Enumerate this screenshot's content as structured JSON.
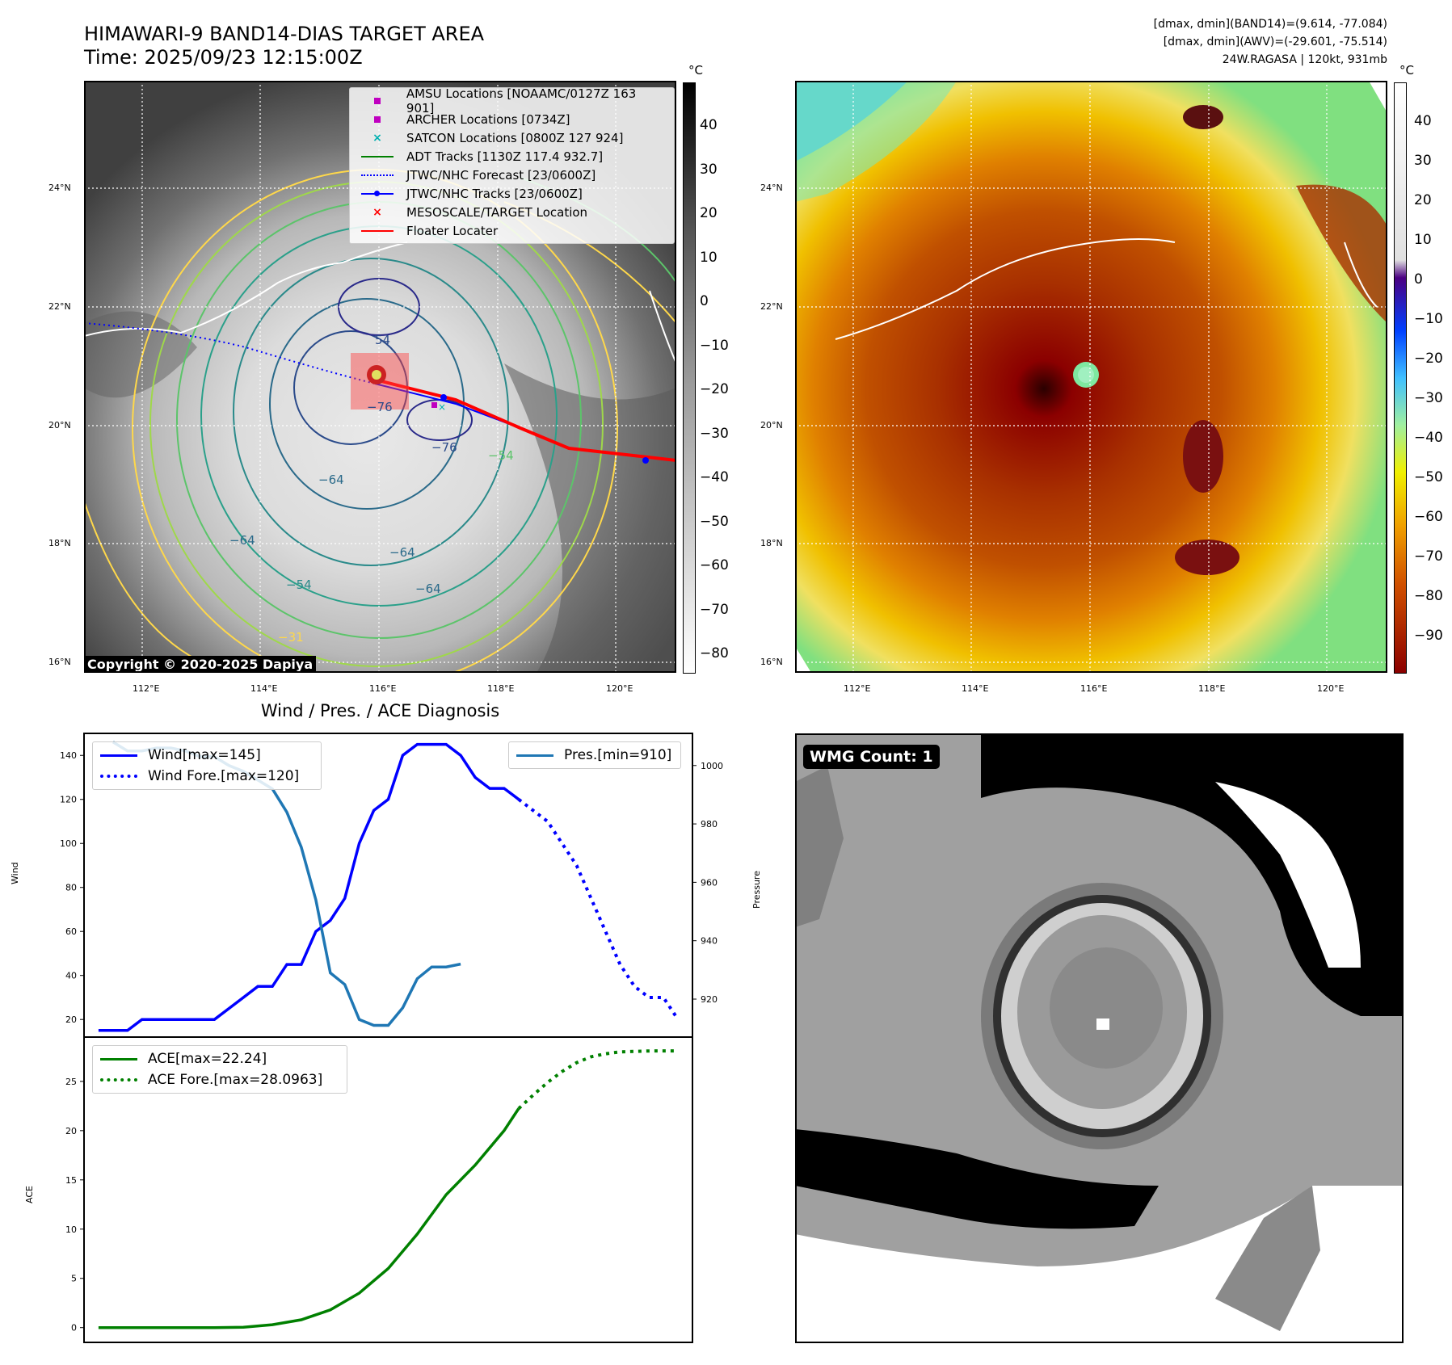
{
  "header": {
    "title": "HIMAWARI-9 BAND14-DIAS TARGET AREA",
    "time": "Time: 2025/09/23 12:15:00Z",
    "info1": "[dmax, dmin](BAND14)=(9.614, -77.084)",
    "info2": "[dmax, dmin](AWV)=(-29.601, -75.514)",
    "info3": "24W.RAGASA | 120kt, 931mb"
  },
  "map_ticks": {
    "lat": [
      "24°N",
      "22°N",
      "20°N",
      "18°N",
      "16°N"
    ],
    "lon": [
      "112°E",
      "114°E",
      "116°E",
      "118°E",
      "120°E"
    ]
  },
  "colorbar_left": {
    "unit": "°C",
    "labels": [
      "40",
      "30",
      "20",
      "10",
      "0",
      "−10",
      "−20",
      "−30",
      "−40",
      "−50",
      "−60",
      "−70",
      "−80"
    ]
  },
  "colorbar_right": {
    "unit": "°C",
    "labels": [
      "40",
      "30",
      "20",
      "10",
      "0",
      "−10",
      "−20",
      "−30",
      "−40",
      "−50",
      "−60",
      "−70",
      "−80",
      "−90"
    ]
  },
  "map_legend": [
    {
      "label": "AMSU Locations [NOAAMC/0127Z 163 901]",
      "marker": "square",
      "color": "#c000c0"
    },
    {
      "label": "ARCHER Locations [0734Z]",
      "marker": "square",
      "color": "#c000c0"
    },
    {
      "label": "SATCON Locations [0800Z 127 924]",
      "marker": "x",
      "color": "#00b0b0"
    },
    {
      "label": "ADT Tracks [1130Z 117.4 932.7]",
      "marker": "line",
      "color": "#008000"
    },
    {
      "label": "JTWC/NHC Forecast [23/0600Z]",
      "marker": "dotted",
      "color": "#0000ff"
    },
    {
      "label": "JTWC/NHC Tracks [23/0600Z]",
      "marker": "line-dot",
      "color": "#0000ff"
    },
    {
      "label": "MESOSCALE/TARGET Location",
      "marker": "x",
      "color": "#ff0000"
    },
    {
      "label": "Floater Locater",
      "marker": "line",
      "color": "#ff0000"
    }
  ],
  "contour_labels": [
    "54",
    "−76",
    "−76",
    "−64",
    "−64",
    "−64",
    "−54",
    "−31",
    "−64",
    "−54"
  ],
  "copyright": "Copyright © 2020-2025 Dapiya",
  "wmg_badge": "WMG Count: 1",
  "chart_data": [
    {
      "type": "line",
      "title": "Wind / Pres. / ACE Diagnosis",
      "ylabel": "Wind",
      "ylabel_right": "Pressure",
      "ylim": [
        12,
        150
      ],
      "ylim_right": [
        907,
        1011
      ],
      "yticks": [
        20,
        40,
        60,
        80,
        100,
        120,
        140
      ],
      "yticks_right": [
        920,
        940,
        960,
        980,
        1000
      ],
      "series": [
        {
          "name": "Wind[max=145]",
          "axis": "left",
          "color": "#0000ff",
          "style": "solid",
          "x": [
            0,
            1,
            2,
            3,
            4,
            5,
            6,
            7,
            8,
            9,
            10,
            11,
            12,
            13,
            14,
            15,
            16,
            17,
            18,
            19,
            20,
            21,
            22,
            23,
            24,
            25,
            26,
            27,
            28,
            29,
            30,
            31,
            32,
            33,
            34,
            35
          ],
          "values": [
            15,
            15,
            15,
            20,
            20,
            20,
            20,
            20,
            20,
            25,
            30,
            35,
            35,
            45,
            45,
            60,
            65,
            75,
            100,
            115,
            120,
            140,
            145,
            145,
            145,
            140,
            130,
            125,
            125,
            120,
            null,
            null,
            null,
            null,
            null,
            null
          ]
        },
        {
          "name": "Wind Fore.[max=120]",
          "axis": "left",
          "color": "#0000ff",
          "style": "dotted",
          "x": [
            29,
            30,
            31,
            32,
            33,
            34,
            35,
            36,
            37,
            38,
            39,
            40
          ],
          "values": [
            120,
            115,
            110,
            100,
            90,
            75,
            60,
            45,
            35,
            30,
            30,
            20
          ]
        },
        {
          "name": "Pres.[min=910]",
          "axis": "right",
          "color": "#1f77b4",
          "style": "solid",
          "x": [
            1,
            2,
            3,
            4,
            5,
            6,
            7,
            8,
            9,
            10,
            11,
            12,
            13,
            14,
            15,
            16,
            17,
            18,
            19,
            20,
            21,
            22,
            23,
            24,
            25,
            26,
            27,
            28
          ],
          "values": [
            1008,
            1005,
            1005,
            1006,
            1006,
            1005,
            1003,
            1003,
            1000,
            998,
            995,
            992,
            984,
            972,
            954,
            929,
            925,
            913,
            911,
            911,
            917,
            927,
            931,
            931,
            932,
            null,
            null,
            null
          ]
        }
      ]
    },
    {
      "type": "line",
      "ylabel": "ACE",
      "ylim": [
        -1.5,
        29.5
      ],
      "yticks": [
        0,
        5,
        10,
        15,
        20,
        25
      ],
      "series": [
        {
          "name": "ACE[max=22.24]",
          "color": "#008000",
          "style": "solid",
          "x": [
            0,
            2,
            4,
            6,
            8,
            10,
            12,
            14,
            16,
            18,
            20,
            22,
            24,
            26,
            28,
            29
          ],
          "values": [
            0,
            0,
            0,
            0,
            0,
            0.03,
            0.3,
            0.8,
            1.8,
            3.5,
            6,
            9.5,
            13.5,
            16.5,
            20,
            22.24
          ]
        },
        {
          "name": "ACE Fore.[max=28.0963]",
          "color": "#008000",
          "style": "dotted",
          "x": [
            29,
            30,
            31,
            32,
            33,
            34,
            35,
            36,
            37,
            38,
            39,
            40
          ],
          "values": [
            22.24,
            23.6,
            24.9,
            26,
            26.9,
            27.5,
            27.8,
            28,
            28.05,
            28.09,
            28.1,
            28.1
          ]
        }
      ]
    }
  ]
}
